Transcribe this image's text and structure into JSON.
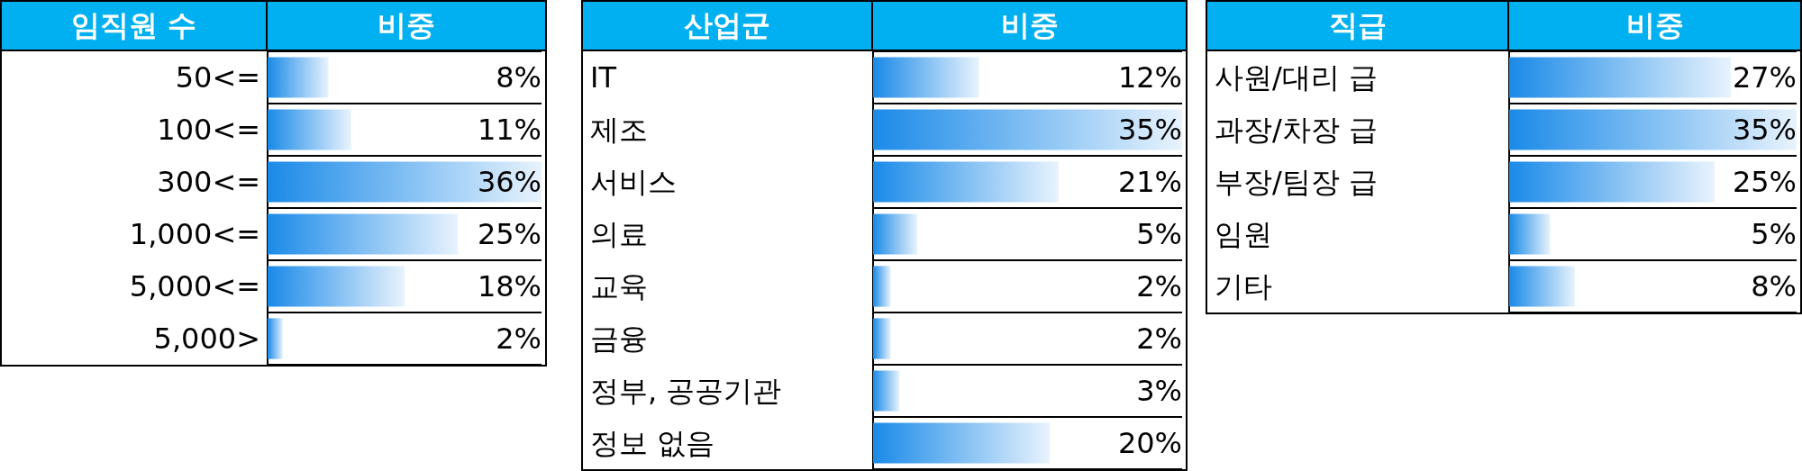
{
  "chart_data": [
    {
      "type": "bar",
      "orientation": "horizontal",
      "ylabel": "임직원 수",
      "xlabel": "비중",
      "categories": [
        "50<=",
        "100<=",
        "300<=",
        "1,000<=",
        "5,000<=",
        "5,000>"
      ],
      "values": [
        8,
        11,
        36,
        25,
        18,
        2
      ],
      "value_labels": [
        "8%",
        "11%",
        "36%",
        "25%",
        "18%",
        "2%"
      ],
      "color": "#1a8ae8",
      "grid": true
    },
    {
      "type": "bar",
      "orientation": "horizontal",
      "ylabel": "산업군",
      "xlabel": "비중",
      "categories": [
        "IT",
        "제조",
        "서비스",
        "의료",
        "교육",
        "금융",
        "정부, 공공기관",
        "정보 없음"
      ],
      "values": [
        12,
        35,
        21,
        5,
        2,
        2,
        3,
        20
      ],
      "value_labels": [
        "12%",
        "35%",
        "21%",
        "5%",
        "2%",
        "2%",
        "3%",
        "20%"
      ],
      "color": "#1a8ae8",
      "grid": true
    },
    {
      "type": "bar",
      "orientation": "horizontal",
      "ylabel": "직급",
      "xlabel": "비중",
      "categories": [
        "사원/대리 급",
        "과장/차장 급",
        "부장/팀장 급",
        "임원",
        "기타"
      ],
      "values": [
        27,
        35,
        25,
        5,
        8
      ],
      "value_labels": [
        "27%",
        "35%",
        "25%",
        "5%",
        "8%"
      ],
      "color": "#1a8ae8",
      "grid": true
    }
  ]
}
